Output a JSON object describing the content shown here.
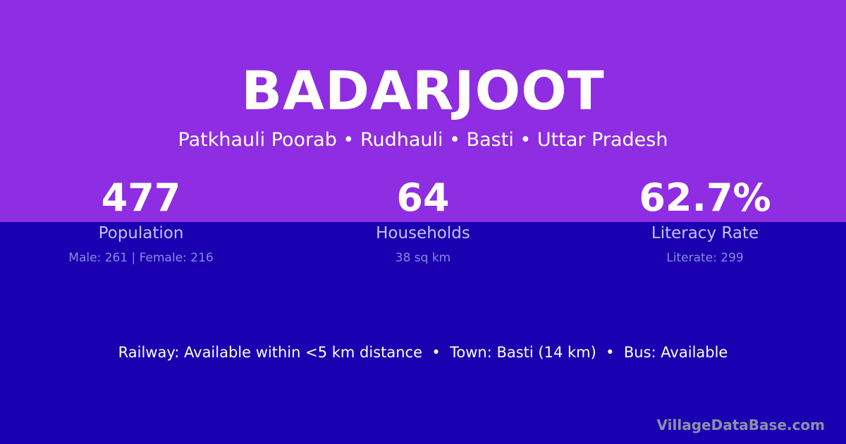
{
  "header": {
    "title": "BADARJOOT",
    "subtitle": "Patkhauli Poorab • Rudhauli • Basti • Uttar Pradesh"
  },
  "stats": [
    {
      "value": "477",
      "label": "Population",
      "detail": "Male: 261 | Female: 216"
    },
    {
      "value": "64",
      "label": "Households",
      "detail": "38 sq km"
    },
    {
      "value": "62.7%",
      "label": "Literacy Rate",
      "detail": "Literate: 299"
    }
  ],
  "facts": "Railway: Available within <5 km distance  •  Town: Basti (14 km)  •  Bus: Available",
  "brand": "VillageDataBase.com",
  "colors": {
    "top_background": "#8e2de2",
    "bottom_background": "#1a00b0"
  }
}
